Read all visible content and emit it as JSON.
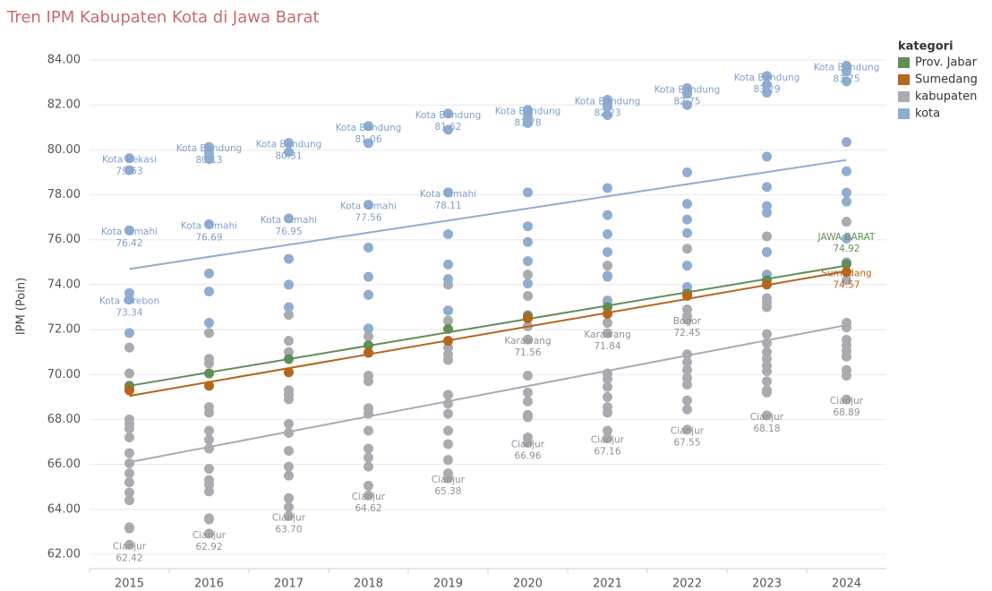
{
  "chart_data": {
    "type": "scatter",
    "title": "Tren IPM Kabupaten Kota di Jawa Barat",
    "y_label": "IPM (Poin)",
    "legend_title": "kategori",
    "legend_position": "right",
    "grid": true,
    "categories": [
      "2015",
      "2016",
      "2017",
      "2018",
      "2019",
      "2020",
      "2021",
      "2022",
      "2023",
      "2024"
    ],
    "ylim": [
      61.36,
      84.68
    ],
    "yticks": [
      {
        "value": 62,
        "label": "62.00"
      },
      {
        "value": 64,
        "label": "64.00"
      },
      {
        "value": 66,
        "label": "66.00"
      },
      {
        "value": 68,
        "label": "68.00"
      },
      {
        "value": 70,
        "label": "70.00"
      },
      {
        "value": 72,
        "label": "72.00"
      },
      {
        "value": 74,
        "label": "74.00"
      },
      {
        "value": 76,
        "label": "76.00"
      },
      {
        "value": 78,
        "label": "78.00"
      },
      {
        "value": 80,
        "label": "80.00"
      },
      {
        "value": 82,
        "label": "82.00"
      },
      {
        "value": 84,
        "label": "84.00"
      }
    ],
    "series": [
      {
        "name": "Prov. Jabar",
        "color": "#5f8f55",
        "trend": [
          69.5,
          74.85
        ],
        "values": [
          [
            69.5
          ],
          [
            70.05
          ],
          [
            70.69
          ],
          [
            71.3
          ],
          [
            72.03
          ],
          [
            72.6
          ],
          [
            73.0
          ],
          [
            73.6
          ],
          [
            74.2
          ],
          [
            74.92
          ]
        ],
        "labels": [
          {
            "category": "2024",
            "name": "JAWA BARAT",
            "value": 74.92
          }
        ]
      },
      {
        "name": "Sumedang",
        "color": "#b5651d",
        "trend": [
          69.05,
          74.6
        ],
        "values": [
          [
            69.3
          ],
          [
            69.5
          ],
          [
            70.1
          ],
          [
            70.97
          ],
          [
            71.5
          ],
          [
            72.5
          ],
          [
            72.7
          ],
          [
            73.5
          ],
          [
            74.0
          ],
          [
            74.57
          ]
        ],
        "labels": [
          {
            "category": "2024",
            "name": "Sumedang",
            "value": 74.57
          }
        ]
      },
      {
        "name": "kabupaten",
        "color": "#a9abb1",
        "trend": [
          66.1,
          72.2
        ],
        "values": [
          [
            71.2,
            70.05,
            69.4,
            68.0,
            67.8,
            67.6,
            67.2,
            66.5,
            66.05,
            65.6,
            65.2,
            64.75,
            64.4,
            63.2,
            63.15,
            62.42
          ],
          [
            71.85,
            70.7,
            70.5,
            68.55,
            68.3,
            67.5,
            67.1,
            66.7,
            65.8,
            65.3,
            65.1,
            64.8,
            63.6,
            63.55,
            62.92
          ],
          [
            72.65,
            71.5,
            71.0,
            69.3,
            69.1,
            68.9,
            67.8,
            67.4,
            66.6,
            65.9,
            65.5,
            64.5,
            64.1,
            63.7
          ],
          [
            73.55,
            72.05,
            71.7,
            69.95,
            69.7,
            68.5,
            68.25,
            67.5,
            66.7,
            66.3,
            65.9,
            65.05,
            64.62
          ],
          [
            74.0,
            72.85,
            72.4,
            71.2,
            70.9,
            70.65,
            69.1,
            68.7,
            68.25,
            67.5,
            66.9,
            66.2,
            65.6,
            65.38
          ],
          [
            74.45,
            73.5,
            72.65,
            72.15,
            71.56,
            69.95,
            69.2,
            68.8,
            68.2,
            68.1,
            67.2,
            66.96
          ],
          [
            74.85,
            74.35,
            73.3,
            72.3,
            71.84,
            70.05,
            69.8,
            69.45,
            69.0,
            68.55,
            68.3,
            67.5,
            67.16
          ],
          [
            75.6,
            74.85,
            73.7,
            72.9,
            72.6,
            72.45,
            70.9,
            70.55,
            70.2,
            69.85,
            69.55,
            68.85,
            68.45,
            67.55
          ],
          [
            76.15,
            75.45,
            74.45,
            73.4,
            73.2,
            73.0,
            71.8,
            71.4,
            71.0,
            70.7,
            70.4,
            70.15,
            69.7,
            69.3,
            69.2,
            68.18
          ],
          [
            76.8,
            75.0,
            74.2,
            72.3,
            72.1,
            71.55,
            71.3,
            71.05,
            70.8,
            70.2,
            69.95,
            68.89
          ]
        ],
        "labels": [
          {
            "category": "2015",
            "name": "Cianjur",
            "value": 62.42
          },
          {
            "category": "2016",
            "name": "Cianjur",
            "value": 62.92
          },
          {
            "category": "2017",
            "name": "Cianjur",
            "value": 63.7,
            "label": "63.70"
          },
          {
            "category": "2018",
            "name": "Cianjur",
            "value": 64.62
          },
          {
            "category": "2019",
            "name": "Cianjur",
            "value": 65.38
          },
          {
            "category": "2020",
            "name": "Cianjur",
            "value": 66.96
          },
          {
            "category": "2021",
            "name": "Cianjur",
            "value": 67.16
          },
          {
            "category": "2022",
            "name": "Cianjur",
            "value": 67.55
          },
          {
            "category": "2023",
            "name": "Cianjur",
            "value": 68.18
          },
          {
            "category": "2024",
            "name": "Cianjur",
            "value": 68.89
          },
          {
            "category": "2020",
            "name": "Karawang",
            "value": 71.56
          },
          {
            "category": "2021",
            "name": "Karawang",
            "value": 71.84
          },
          {
            "category": "2022",
            "name": "Bogor",
            "value": 72.45
          }
        ]
      },
      {
        "name": "kota",
        "color": "#91acd1",
        "trend": [
          74.7,
          79.55
        ],
        "values": [
          [
            79.63,
            79.1,
            76.42,
            73.63,
            73.34,
            71.85
          ],
          [
            80.13,
            79.85,
            79.6,
            76.69,
            74.5,
            73.7,
            72.3
          ],
          [
            80.31,
            79.9,
            76.95,
            75.15,
            74.0,
            73.0
          ],
          [
            81.06,
            80.3,
            77.56,
            75.65,
            74.35,
            73.55,
            72.05
          ],
          [
            81.62,
            80.9,
            78.11,
            76.25,
            74.9,
            74.25,
            72.85
          ],
          [
            81.78,
            81.5,
            81.2,
            78.11,
            76.6,
            75.9,
            75.05,
            74.05
          ],
          [
            82.23,
            81.95,
            81.55,
            78.3,
            77.1,
            76.25,
            75.45,
            74.4,
            73.25
          ],
          [
            82.75,
            82.5,
            82.0,
            79.0,
            77.6,
            76.9,
            76.3,
            74.85,
            73.9
          ],
          [
            83.29,
            82.9,
            82.55,
            79.7,
            78.35,
            77.5,
            77.2,
            75.45,
            74.45
          ],
          [
            83.75,
            83.5,
            83.05,
            80.35,
            79.05,
            78.1,
            77.7,
            76.05,
            74.95
          ]
        ],
        "labels": [
          {
            "category": "2015",
            "name": "Kota Bekasi",
            "value": 79.63
          },
          {
            "category": "2016",
            "name": "Kota Bandung",
            "value": 80.13
          },
          {
            "category": "2017",
            "name": "Kota Bandung",
            "value": 80.31
          },
          {
            "category": "2018",
            "name": "Kota Bandung",
            "value": 81.06
          },
          {
            "category": "2019",
            "name": "Kota Bandung",
            "value": 81.62
          },
          {
            "category": "2020",
            "name": "Kota Bandung",
            "value": 81.78
          },
          {
            "category": "2021",
            "name": "Kota Bandung",
            "value": 82.23
          },
          {
            "category": "2022",
            "name": "Kota Bandung",
            "value": 82.75
          },
          {
            "category": "2023",
            "name": "Kota Bandung",
            "value": 83.29
          },
          {
            "category": "2024",
            "name": "Kota Bandung",
            "value": 83.75
          },
          {
            "category": "2015",
            "name": "Kota Cimahi",
            "value": 76.42
          },
          {
            "category": "2016",
            "name": "Kota Cimahi",
            "value": 76.69
          },
          {
            "category": "2017",
            "name": "Kota Cimahi",
            "value": 76.95
          },
          {
            "category": "2018",
            "name": "Kota Cimahi",
            "value": 77.56
          },
          {
            "category": "2019",
            "name": "Kota Cimahi",
            "value": 78.11
          },
          {
            "category": "2015",
            "name": "Kota Cirebon",
            "value": 73.34
          }
        ]
      }
    ]
  }
}
